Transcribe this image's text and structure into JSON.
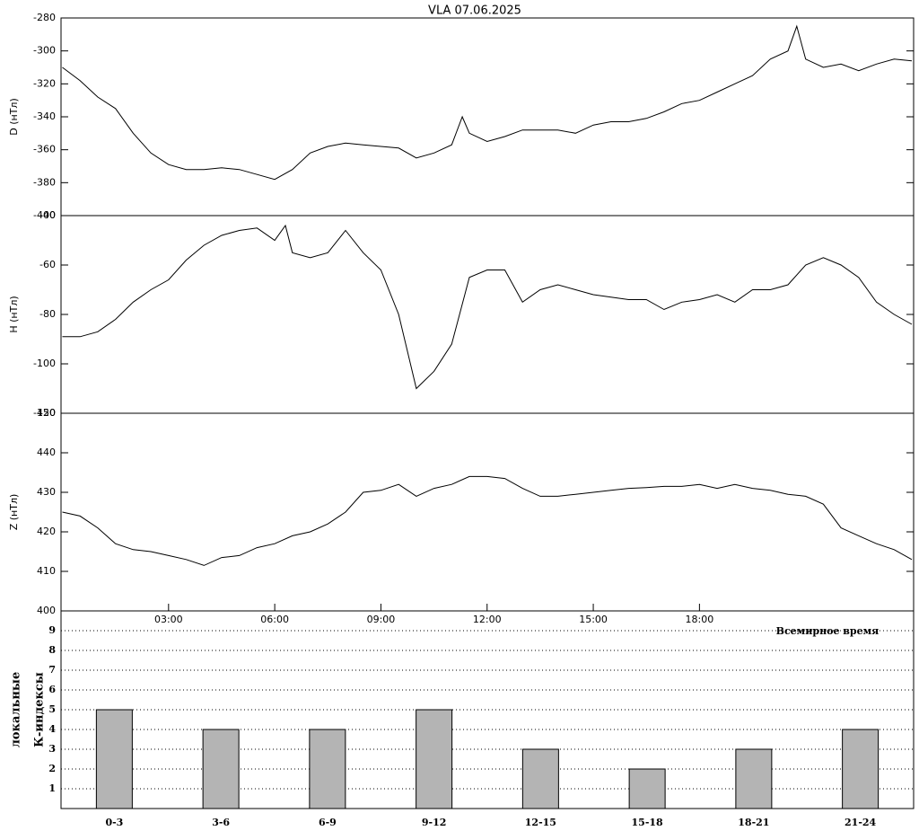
{
  "chart_data": [
    {
      "type": "line",
      "title": "VLA   07.06.2025",
      "ylabel": "D (нТл)",
      "xlim": [
        0,
        24
      ],
      "ylim": [
        -400,
        -280
      ],
      "yticks": [
        -400,
        -380,
        -360,
        -340,
        -320,
        -300,
        -280
      ],
      "color": "#000000",
      "x": [
        0,
        0.5,
        1,
        1.5,
        2,
        2.5,
        3,
        3.5,
        4,
        4.5,
        5,
        5.5,
        6,
        6.5,
        7,
        7.5,
        8,
        8.5,
        9,
        9.5,
        10,
        10.5,
        11,
        11.3,
        11.5,
        12,
        12.5,
        13,
        13.5,
        14,
        14.5,
        15,
        15.5,
        16,
        16.5,
        17,
        17.5,
        18,
        18.5,
        19,
        19.5,
        20,
        20.5,
        20.75,
        21,
        21.5,
        22,
        22.5,
        23,
        23.5,
        24
      ],
      "values": [
        -310,
        -318,
        -328,
        -335,
        -350,
        -362,
        -369,
        -372,
        -372,
        -371,
        -372,
        -375,
        -378,
        -372,
        -362,
        -358,
        -356,
        -357,
        -358,
        -359,
        -365,
        -362,
        -357,
        -340,
        -350,
        -355,
        -352,
        -348,
        -348,
        -348,
        -350,
        -345,
        -343,
        -343,
        -341,
        -337,
        -332,
        -330,
        -325,
        -320,
        -315,
        -305,
        -300,
        -285,
        -305,
        -310,
        -308,
        -312,
        -308,
        -305,
        -306
      ]
    },
    {
      "type": "line",
      "ylabel": "H (нТл)",
      "xlim": [
        0,
        24
      ],
      "ylim": [
        -120,
        -40
      ],
      "yticks": [
        -120,
        -100,
        -80,
        -60,
        -40
      ],
      "color": "#000000",
      "x": [
        0,
        0.5,
        1,
        1.5,
        2,
        2.5,
        3,
        3.5,
        4,
        4.5,
        5,
        5.5,
        6,
        6.3,
        6.5,
        7,
        7.5,
        8,
        8.5,
        9,
        9.5,
        10,
        10.5,
        11,
        11.5,
        12,
        12.5,
        13,
        13.5,
        14,
        14.5,
        15,
        15.5,
        16,
        16.5,
        17,
        17.5,
        18,
        18.5,
        19,
        19.5,
        20,
        20.5,
        21,
        21.5,
        22,
        22.5,
        23,
        23.5,
        24
      ],
      "values": [
        -89,
        -89,
        -87,
        -82,
        -75,
        -70,
        -66,
        -58,
        -52,
        -48,
        -46,
        -45,
        -50,
        -44,
        -55,
        -57,
        -55,
        -46,
        -55,
        -62,
        -80,
        -110,
        -103,
        -92,
        -65,
        -62,
        -62,
        -75,
        -70,
        -68,
        -70,
        -72,
        -73,
        -74,
        -74,
        -78,
        -75,
        -74,
        -72,
        -75,
        -70,
        -70,
        -68,
        -60,
        -57,
        -60,
        -65,
        -75,
        -80,
        -84
      ]
    },
    {
      "type": "line",
      "ylabel": "Z (нТл)",
      "xlabel": "Всемирное время",
      "xlim": [
        0,
        24
      ],
      "ylim": [
        400,
        450
      ],
      "yticks": [
        400,
        410,
        420,
        430,
        440,
        450
      ],
      "color": "#000000",
      "xticks": [
        {
          "value": 3,
          "label": "03:00"
        },
        {
          "value": 6,
          "label": "06:00"
        },
        {
          "value": 9,
          "label": "09:00"
        },
        {
          "value": 12,
          "label": "12:00"
        },
        {
          "value": 15,
          "label": "15:00"
        },
        {
          "value": 18,
          "label": "18:00"
        }
      ],
      "x": [
        0,
        0.5,
        1,
        1.5,
        2,
        2.5,
        3,
        3.5,
        4,
        4.5,
        5,
        5.5,
        6,
        6.5,
        7,
        7.5,
        8,
        8.5,
        9,
        9.5,
        10,
        10.5,
        11,
        11.5,
        12,
        12.5,
        13,
        13.5,
        14,
        14.5,
        15,
        15.5,
        16,
        16.5,
        17,
        17.5,
        18,
        18.5,
        19,
        19.5,
        20,
        20.5,
        21,
        21.5,
        22,
        22.5,
        23,
        23.5,
        24
      ],
      "values": [
        425,
        424,
        421,
        417,
        415.5,
        415,
        414,
        413,
        411.5,
        413.5,
        414,
        416,
        417,
        419,
        420,
        422,
        425,
        430,
        430.5,
        432,
        429,
        431,
        432,
        434,
        434,
        433.5,
        431,
        429,
        429,
        429.5,
        430,
        430.5,
        431,
        431.2,
        431.5,
        431.5,
        432,
        431,
        432,
        431,
        430.5,
        429.5,
        429,
        427,
        421,
        419,
        417,
        415.5,
        413
      ]
    },
    {
      "type": "bar",
      "ylabel": [
        "локальные",
        "К-индексы"
      ],
      "ylim": [
        0,
        10
      ],
      "yticks": [
        1,
        2,
        3,
        4,
        5,
        6,
        7,
        8,
        9
      ],
      "grid": true,
      "color": "#b4b4b4",
      "categories": [
        "0-3",
        "3-6",
        "6-9",
        "9-12",
        "12-15",
        "15-18",
        "18-21",
        "21-24"
      ],
      "values": [
        5,
        4,
        4,
        5,
        3,
        2,
        3,
        4
      ]
    }
  ]
}
